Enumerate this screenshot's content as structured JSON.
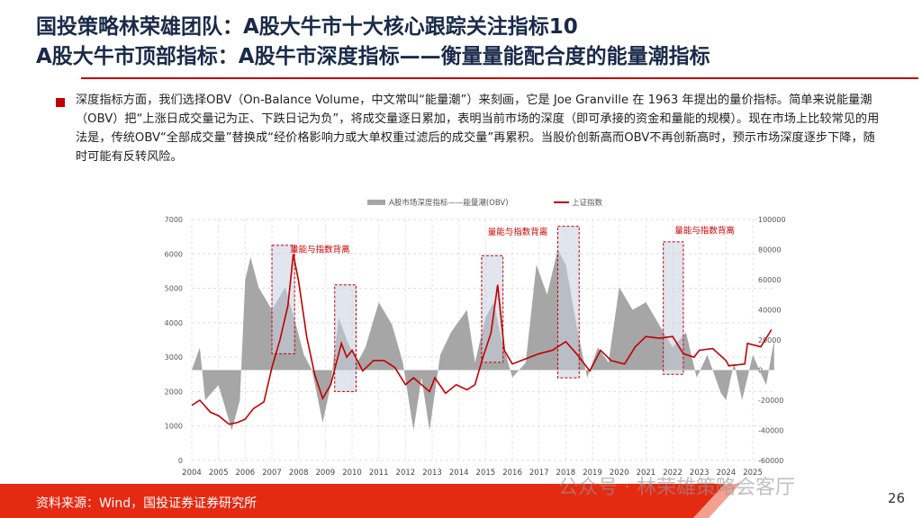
{
  "title": {
    "line1": "国投策略林荣雄团队：A股大牛市十大核心跟踪关注指标10",
    "line2": "A股大牛市顶部指标：A股牛市深度指标——衡量量能配合度的能量潮指标"
  },
  "body_text": "深度指标方面，我们选择OBV（On-Balance Volume，中文常叫“能量潮”）来刻画，它是 Joe Granville 在 1963 年提出的量价指标。简单来说能量潮（OBV）把“上涨日成交量记为正、下跌日记为负”，将成交量逐日累加，表明当前市场的深度（即可承接的资金和量能的规模）。现在市场上比较常见的用法是，传统OBV“全部成交量”替换成“经价格影响力或大单权重过滤后的成交量”再累积。当股价创新高而OBV不再创新高时，预示市场深度逐步下降，随时可能有反转风险。",
  "footer": {
    "source": "资料来源：Wind，国投证券证券研究所",
    "page": "26",
    "watermark": "公众号 · 林荣雄策略会客厅"
  },
  "colors": {
    "accent": "#c00000",
    "title": "#1a2a4a",
    "obv": "#a6a6a6",
    "index": "#c00000",
    "box": "#c8cfe0"
  },
  "chart_data": {
    "type": "area+line",
    "legend_position": "top",
    "grid": true,
    "series": [
      {
        "name": "A股市场深度指标——能量潮(OBV)",
        "type": "area",
        "axis": "right",
        "x": [
          2004.0,
          2004.3,
          2004.5,
          2005.0,
          2005.5,
          2005.8,
          2006.0,
          2006.2,
          2006.5,
          2007.0,
          2007.5,
          2007.9,
          2008.2,
          2008.5,
          2008.9,
          2009.2,
          2009.5,
          2009.8,
          2010.2,
          2010.5,
          2011.0,
          2011.5,
          2011.9,
          2012.3,
          2012.6,
          2012.9,
          2013.3,
          2013.7,
          2014.3,
          2014.6,
          2015.0,
          2015.3,
          2015.6,
          2016.0,
          2016.5,
          2016.9,
          2017.3,
          2017.7,
          2018.0,
          2018.4,
          2018.8,
          2019.2,
          2019.6,
          2020.0,
          2020.5,
          2021.0,
          2021.5,
          2022.0,
          2022.5,
          2022.9,
          2023.3,
          2023.8,
          2024.0,
          2024.3,
          2024.6,
          2025.0,
          2025.5,
          2025.8
        ],
        "values": [
          0,
          15000,
          -20000,
          -10000,
          -40000,
          -20000,
          60000,
          75000,
          55000,
          40000,
          55000,
          30000,
          10000,
          0,
          -35000,
          -10000,
          35000,
          20000,
          5000,
          15000,
          45000,
          30000,
          5000,
          -40000,
          -5000,
          -40000,
          10000,
          25000,
          40000,
          5000,
          35000,
          45000,
          20000,
          -5000,
          5000,
          70000,
          50000,
          80000,
          70000,
          30000,
          -5000,
          15000,
          5000,
          55000,
          40000,
          45000,
          30000,
          15000,
          25000,
          -5000,
          10000,
          -15000,
          -20000,
          5000,
          -20000,
          10000,
          -10000,
          20000
        ]
      },
      {
        "name": "上证指数",
        "type": "line",
        "axis": "left",
        "x": [
          2004.0,
          2004.3,
          2004.7,
          2005.0,
          2005.4,
          2005.7,
          2006.0,
          2006.3,
          2006.7,
          2007.0,
          2007.3,
          2007.6,
          2007.8,
          2008.0,
          2008.3,
          2008.6,
          2008.9,
          2009.2,
          2009.6,
          2009.8,
          2010.0,
          2010.4,
          2010.8,
          2011.2,
          2011.6,
          2012.0,
          2012.3,
          2012.9,
          2013.1,
          2013.5,
          2013.9,
          2014.3,
          2014.6,
          2014.9,
          2015.2,
          2015.45,
          2015.7,
          2016.0,
          2016.5,
          2017.0,
          2017.5,
          2018.0,
          2018.4,
          2018.9,
          2019.3,
          2019.7,
          2020.2,
          2020.6,
          2021.0,
          2021.5,
          2022.0,
          2022.4,
          2022.8,
          2023.0,
          2023.5,
          2024.0,
          2024.1,
          2024.7,
          2024.8,
          2025.3,
          2025.7
        ],
        "values": [
          1600,
          1750,
          1400,
          1300,
          1050,
          1100,
          1200,
          1500,
          1700,
          2700,
          3500,
          4500,
          6000,
          5200,
          3600,
          2500,
          1800,
          2200,
          3400,
          3000,
          3200,
          2600,
          2900,
          2900,
          2700,
          2200,
          2400,
          2000,
          2400,
          1950,
          2200,
          2050,
          2200,
          3000,
          3700,
          5100,
          3200,
          2800,
          2950,
          3100,
          3200,
          3450,
          3100,
          2600,
          3200,
          2900,
          2800,
          3300,
          3600,
          3550,
          3600,
          3100,
          3000,
          3200,
          3250,
          2900,
          2750,
          2800,
          3400,
          3300,
          3800
        ]
      }
    ],
    "divergence_boxes": [
      {
        "x": [
          2007.0,
          2007.85
        ],
        "y": [
          3100,
          6250
        ]
      },
      {
        "x": [
          2009.35,
          2010.15
        ],
        "y": [
          2000,
          5100
        ]
      },
      {
        "x": [
          2014.85,
          2015.65
        ],
        "y": [
          2850,
          5950
        ]
      },
      {
        "x": [
          2017.7,
          2018.5
        ],
        "y": [
          2400,
          6800
        ]
      },
      {
        "x": [
          2021.65,
          2022.4
        ],
        "y": [
          2500,
          6350
        ]
      }
    ],
    "annotations": [
      {
        "text": "量能与指数背离",
        "x": 2008.8,
        "y": 6050
      },
      {
        "text": "量能与指数背离",
        "x": 2016.2,
        "y": 6550
      },
      {
        "text": "量能与指数背离",
        "x": 2023.2,
        "y": 6600
      }
    ],
    "x_ticks": [
      "2004",
      "2005",
      "2006",
      "2007",
      "2008",
      "2009",
      "2010",
      "2011",
      "2012",
      "2013",
      "2014",
      "2015",
      "2016",
      "2017",
      "2018",
      "2019",
      "2020",
      "2021",
      "2022",
      "2023",
      "2024",
      "2025"
    ],
    "y_left": {
      "range": [
        0,
        7000
      ],
      "ticks": [
        "0",
        "1000",
        "2000",
        "3000",
        "4000",
        "5000",
        "6000",
        "7000"
      ]
    },
    "y_right": {
      "range": [
        -60000,
        100000
      ],
      "ticks": [
        "-60000",
        "-40000",
        "-20000",
        "0",
        "20000",
        "40000",
        "60000",
        "80000",
        "100000"
      ]
    }
  }
}
